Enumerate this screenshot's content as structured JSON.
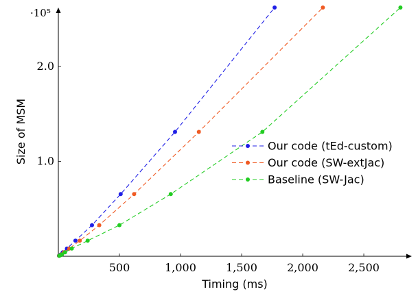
{
  "chart_data": {
    "type": "line",
    "xlabel": "Timing (ms)",
    "ylabel": "Size of MSM",
    "y_scale_label": "·10⁵",
    "xlim": [
      0,
      2820
    ],
    "ylim": [
      0,
      262144
    ],
    "x_ticks": [
      500,
      1000,
      1500,
      2000,
      2500
    ],
    "x_tick_labels": [
      "500",
      "1,000",
      "1,500",
      "2,000",
      "2,500"
    ],
    "y_ticks": [
      100000,
      200000
    ],
    "y_tick_labels": [
      "1.0",
      "2.0"
    ],
    "legend_position": "center-right",
    "grid": false,
    "series": [
      {
        "name": "Our code (tEd-custom)",
        "color": "#1f1fe6",
        "points": [
          [
            5,
            512
          ],
          [
            12,
            1024
          ],
          [
            20,
            2048
          ],
          [
            36,
            4096
          ],
          [
            70,
            8192
          ],
          [
            140,
            16384
          ],
          [
            275,
            32768
          ],
          [
            510,
            65536
          ],
          [
            955,
            131072
          ],
          [
            1770,
            262144
          ]
        ]
      },
      {
        "name": "Our code (SW-extJac)",
        "color": "#f05a23",
        "points": [
          [
            6,
            512
          ],
          [
            14,
            1024
          ],
          [
            25,
            2048
          ],
          [
            45,
            4096
          ],
          [
            90,
            8192
          ],
          [
            175,
            16384
          ],
          [
            335,
            32768
          ],
          [
            620,
            65536
          ],
          [
            1150,
            131072
          ],
          [
            2165,
            262144
          ]
        ]
      },
      {
        "name": "Baseline (SW-Jac)",
        "color": "#22cc22",
        "points": [
          [
            8,
            512
          ],
          [
            17,
            1024
          ],
          [
            30,
            2048
          ],
          [
            55,
            4096
          ],
          [
            110,
            8192
          ],
          [
            240,
            16384
          ],
          [
            500,
            32768
          ],
          [
            920,
            65536
          ],
          [
            1670,
            131072
          ],
          [
            2800,
            262144
          ]
        ]
      }
    ]
  }
}
